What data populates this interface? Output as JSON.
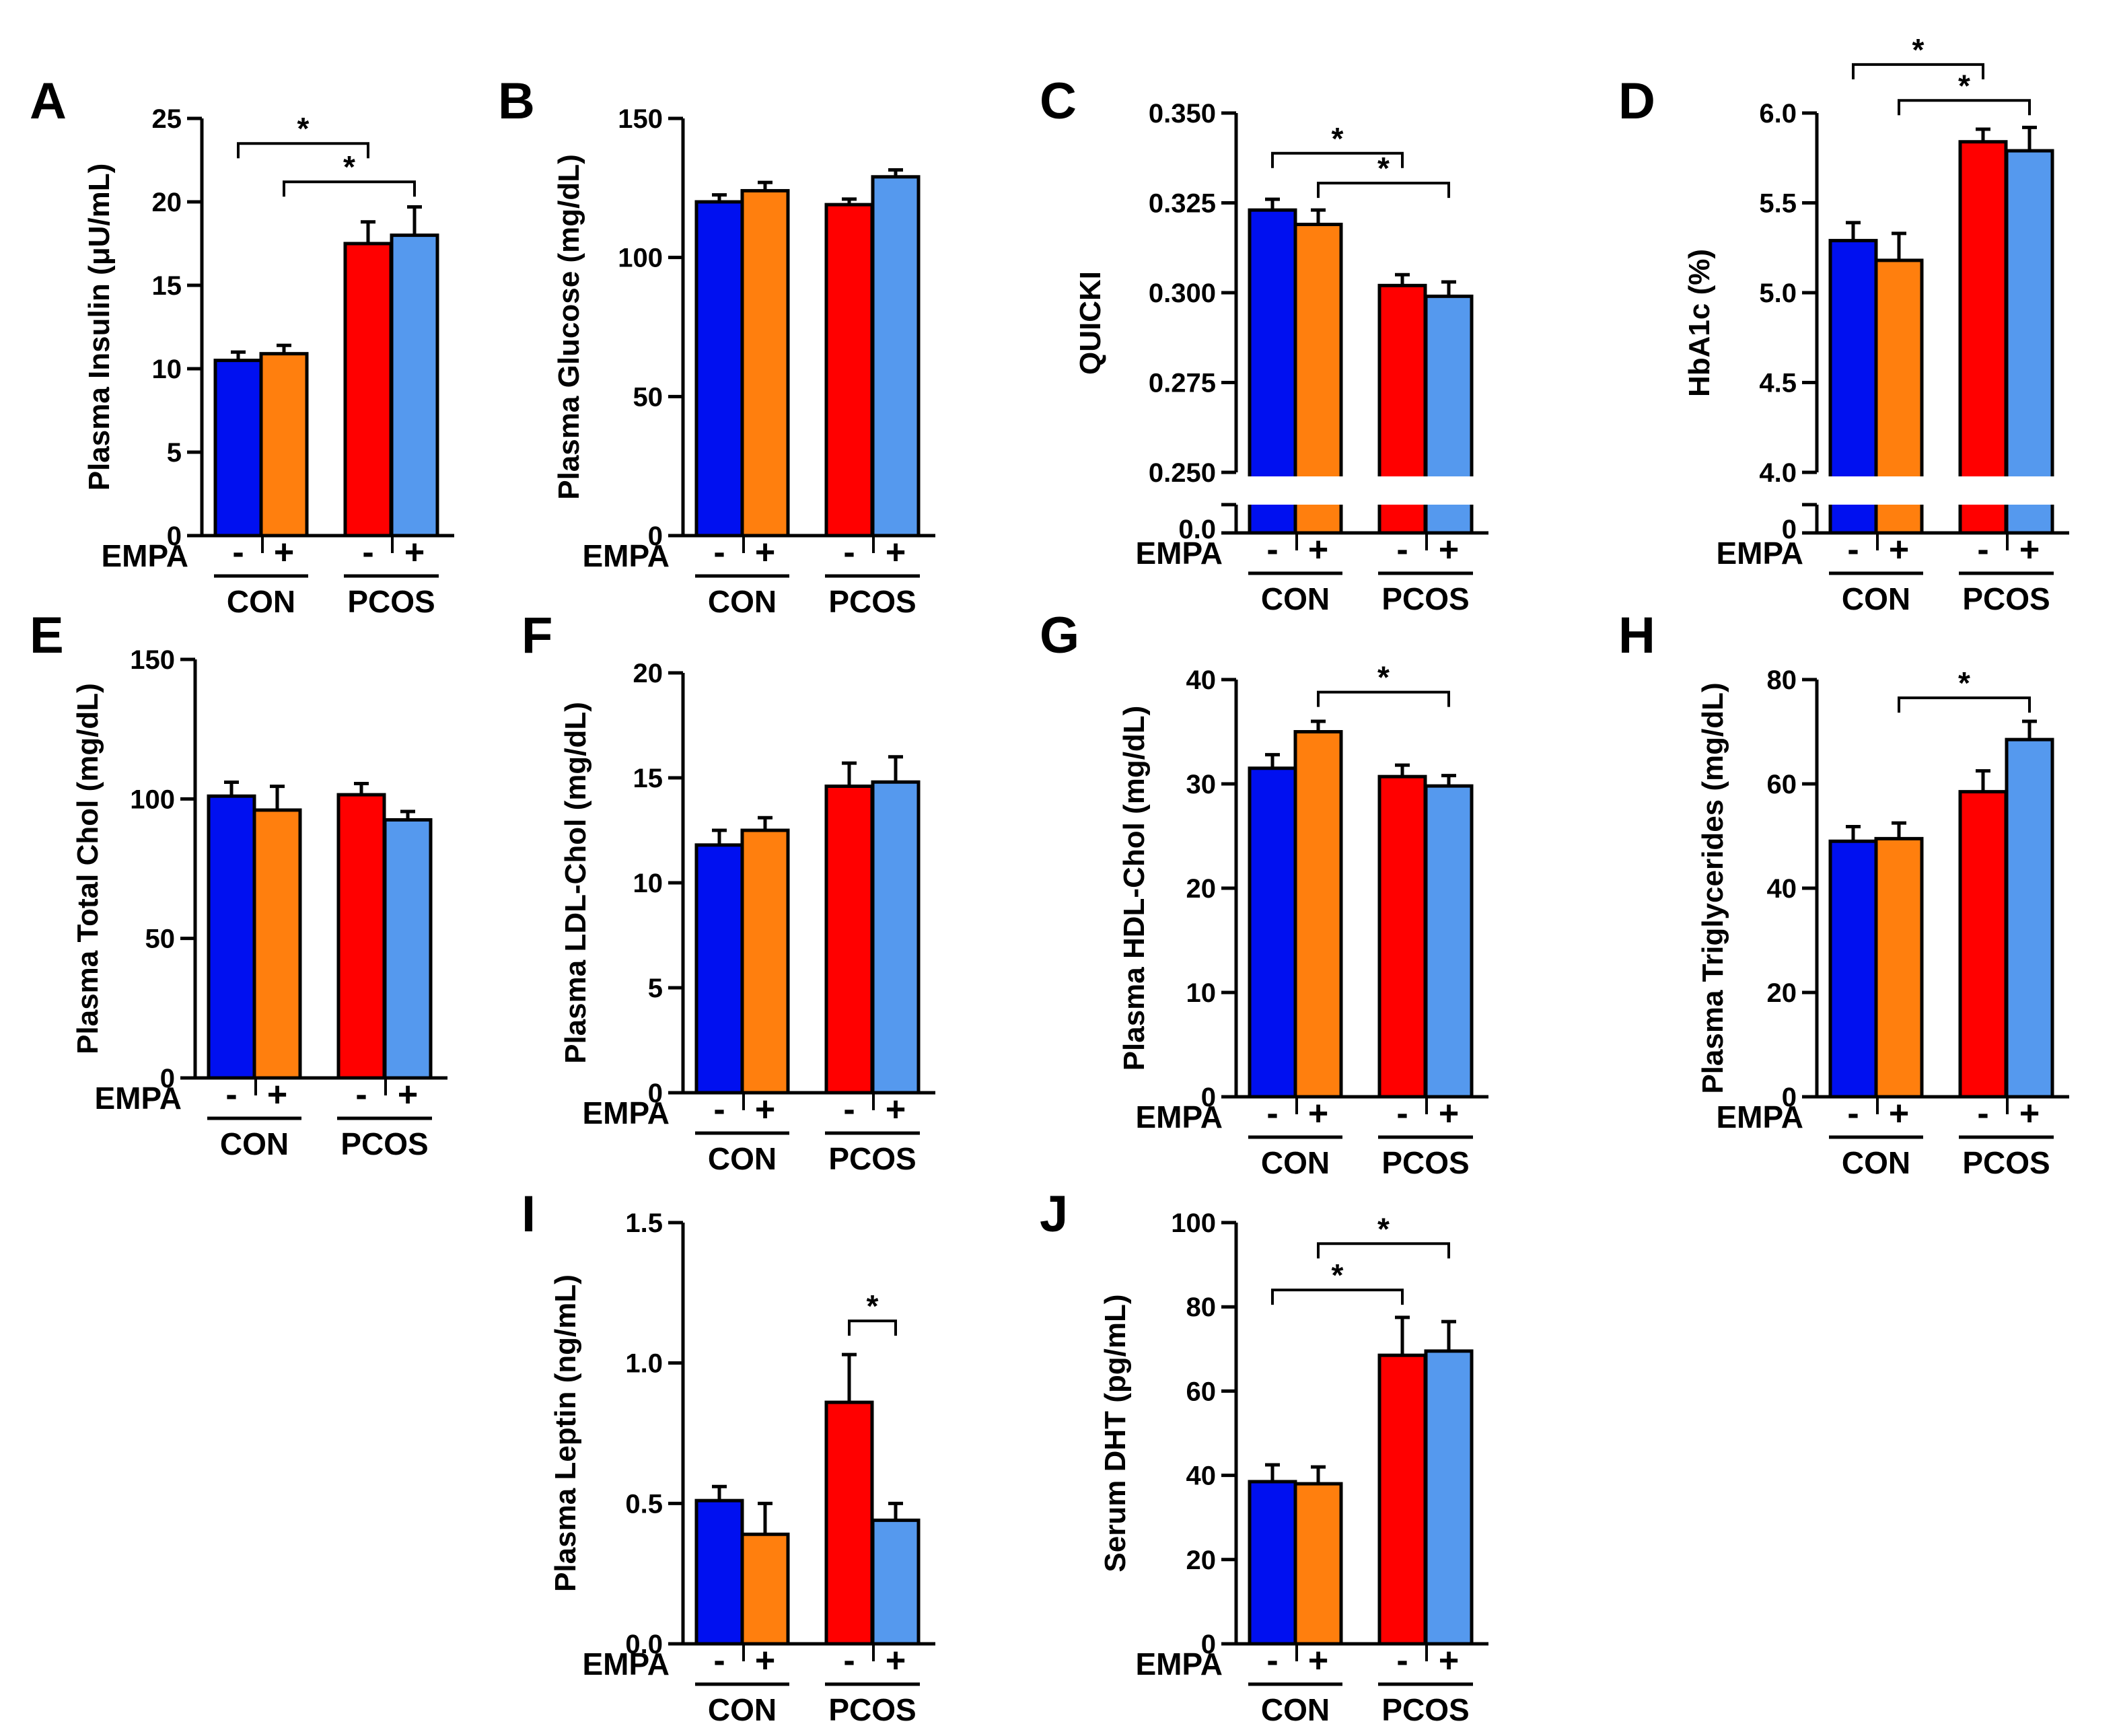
{
  "figure": {
    "treatment_label": "EMPA",
    "treatment_signs": [
      "-",
      "+",
      "-",
      "+"
    ],
    "group_labels": [
      "CON",
      "PCOS"
    ],
    "significance_symbol": "*"
  },
  "colors": {
    "bars": [
      "#0010f0",
      "#ff7f0e",
      "#ff0000",
      "#5599ee"
    ],
    "axis": "#000000"
  },
  "chart_data": [
    {
      "type": "bar",
      "panel": "A",
      "ylabel": "Plasma Insulin (μU/mL)",
      "categories": [
        "CON -",
        "CON +",
        "PCOS -",
        "PCOS +"
      ],
      "values": [
        10.5,
        10.9,
        17.5,
        18.0
      ],
      "errors": [
        0.5,
        0.5,
        1.3,
        1.7
      ],
      "ylim": [
        0,
        25
      ],
      "yticks": [
        0,
        5,
        10,
        15,
        20,
        25
      ],
      "ytick_labels": [
        "0",
        "5",
        "10",
        "15",
        "20",
        "25"
      ],
      "significance": [
        {
          "from": 0,
          "to": 2,
          "at": 23.5
        },
        {
          "from": 1,
          "to": 3,
          "at": 21.2
        }
      ]
    },
    {
      "type": "bar",
      "panel": "B",
      "ylabel": "Plasma Glucose (mg/dL)",
      "categories": [
        "CON -",
        "CON +",
        "PCOS -",
        "PCOS +"
      ],
      "values": [
        120,
        124,
        119,
        129
      ],
      "errors": [
        2.5,
        3,
        2,
        2.5
      ],
      "ylim": [
        0,
        150
      ],
      "yticks": [
        0,
        50,
        100,
        150
      ],
      "ytick_labels": [
        "0",
        "50",
        "100",
        "150"
      ],
      "significance": []
    },
    {
      "type": "bar",
      "panel": "C",
      "ylabel": "QUICKI",
      "categories": [
        "CON -",
        "CON +",
        "PCOS -",
        "PCOS +"
      ],
      "values": [
        0.323,
        0.319,
        0.302,
        0.299
      ],
      "errors": [
        0.003,
        0.004,
        0.003,
        0.004
      ],
      "ylim": [
        0.25,
        0.35
      ],
      "axis_break": true,
      "break_bottom_label": "0.0",
      "yticks": [
        0.25,
        0.275,
        0.3,
        0.325,
        0.35
      ],
      "ytick_labels": [
        "0.250",
        "0.275",
        "0.300",
        "0.325",
        "0.350"
      ],
      "significance": [
        {
          "from": 0,
          "to": 2,
          "at": 0.3388
        },
        {
          "from": 1,
          "to": 3,
          "at": 0.3305
        }
      ]
    },
    {
      "type": "bar",
      "panel": "D",
      "ylabel": "HbA1c (%)",
      "categories": [
        "CON -",
        "CON +",
        "PCOS -",
        "PCOS +"
      ],
      "values": [
        5.29,
        5.18,
        5.84,
        5.79
      ],
      "errors": [
        0.1,
        0.15,
        0.07,
        0.13
      ],
      "ylim": [
        4.0,
        6.0
      ],
      "axis_break": true,
      "break_bottom_label": "0",
      "yticks": [
        4.0,
        4.5,
        5.0,
        5.5,
        6.0
      ],
      "ytick_labels": [
        "4.0",
        "4.5",
        "5.0",
        "5.5",
        "6.0"
      ],
      "significance": [
        {
          "from": 0,
          "to": 2,
          "at": 6.27
        },
        {
          "from": 1,
          "to": 3,
          "at": 6.07
        }
      ]
    },
    {
      "type": "bar",
      "panel": "E",
      "ylabel": "Plasma Total Chol (mg/dL)",
      "categories": [
        "CON -",
        "CON +",
        "PCOS -",
        "PCOS +"
      ],
      "values": [
        101,
        96,
        101.5,
        92.5
      ],
      "errors": [
        5,
        8.5,
        4,
        3
      ],
      "ylim": [
        0,
        150
      ],
      "yticks": [
        0,
        50,
        100,
        150
      ],
      "ytick_labels": [
        "0",
        "50",
        "100",
        "150"
      ],
      "significance": []
    },
    {
      "type": "bar",
      "panel": "F",
      "ylabel": "Plasma LDL-Chol (mg/dL)",
      "categories": [
        "CON -",
        "CON +",
        "PCOS -",
        "PCOS +"
      ],
      "values": [
        11.8,
        12.5,
        14.6,
        14.8
      ],
      "errors": [
        0.7,
        0.6,
        1.1,
        1.2
      ],
      "ylim": [
        0,
        20
      ],
      "yticks": [
        0,
        5,
        10,
        15,
        20
      ],
      "ytick_labels": [
        "0",
        "5",
        "10",
        "15",
        "20"
      ],
      "significance": []
    },
    {
      "type": "bar",
      "panel": "G",
      "ylabel": "Plasma HDL-Chol (mg/dL)",
      "categories": [
        "CON -",
        "CON +",
        "PCOS -",
        "PCOS +"
      ],
      "values": [
        31.5,
        35,
        30.7,
        29.8
      ],
      "errors": [
        1.3,
        1.0,
        1.1,
        1.0
      ],
      "ylim": [
        0,
        40
      ],
      "yticks": [
        0,
        10,
        20,
        30,
        40
      ],
      "ytick_labels": [
        "0",
        "10",
        "20",
        "30",
        "40"
      ],
      "significance": [
        {
          "from": 1,
          "to": 3,
          "at": 38.8
        }
      ]
    },
    {
      "type": "bar",
      "panel": "H",
      "ylabel": "Plasma Triglycerides (mg/dL)",
      "categories": [
        "CON -",
        "CON +",
        "PCOS -",
        "PCOS +"
      ],
      "values": [
        49,
        49.5,
        58.5,
        68.5
      ],
      "errors": [
        2.8,
        3,
        4,
        3.5
      ],
      "ylim": [
        0,
        80
      ],
      "yticks": [
        0,
        20,
        40,
        60,
        80
      ],
      "ytick_labels": [
        "0",
        "20",
        "40",
        "60",
        "80"
      ],
      "significance": [
        {
          "from": 1,
          "to": 3,
          "at": 76.5
        }
      ]
    },
    {
      "type": "bar",
      "panel": "I",
      "ylabel": "Plasma Leptin (ng/mL)",
      "categories": [
        "CON -",
        "CON +",
        "PCOS -",
        "PCOS +"
      ],
      "values": [
        0.51,
        0.39,
        0.86,
        0.44
      ],
      "errors": [
        0.05,
        0.11,
        0.17,
        0.06
      ],
      "ylim": [
        0,
        1.5
      ],
      "yticks": [
        0,
        0.5,
        1.0,
        1.5
      ],
      "ytick_labels": [
        "0.0",
        "0.5",
        "1.0",
        "1.5"
      ],
      "significance": [
        {
          "from": 2,
          "to": 3,
          "at": 1.15
        }
      ]
    },
    {
      "type": "bar",
      "panel": "J",
      "ylabel": "Serum DHT (pg/mL)",
      "categories": [
        "CON -",
        "CON +",
        "PCOS -",
        "PCOS +"
      ],
      "values": [
        38.5,
        38,
        68.5,
        69.5
      ],
      "errors": [
        4,
        4,
        9,
        7
      ],
      "ylim": [
        0,
        100
      ],
      "yticks": [
        0,
        20,
        40,
        60,
        80,
        100
      ],
      "ytick_labels": [
        "0",
        "20",
        "40",
        "60",
        "80",
        "100"
      ],
      "significance": [
        {
          "from": 0,
          "to": 2,
          "at": 84
        },
        {
          "from": 1,
          "to": 3,
          "at": 95
        }
      ]
    }
  ]
}
